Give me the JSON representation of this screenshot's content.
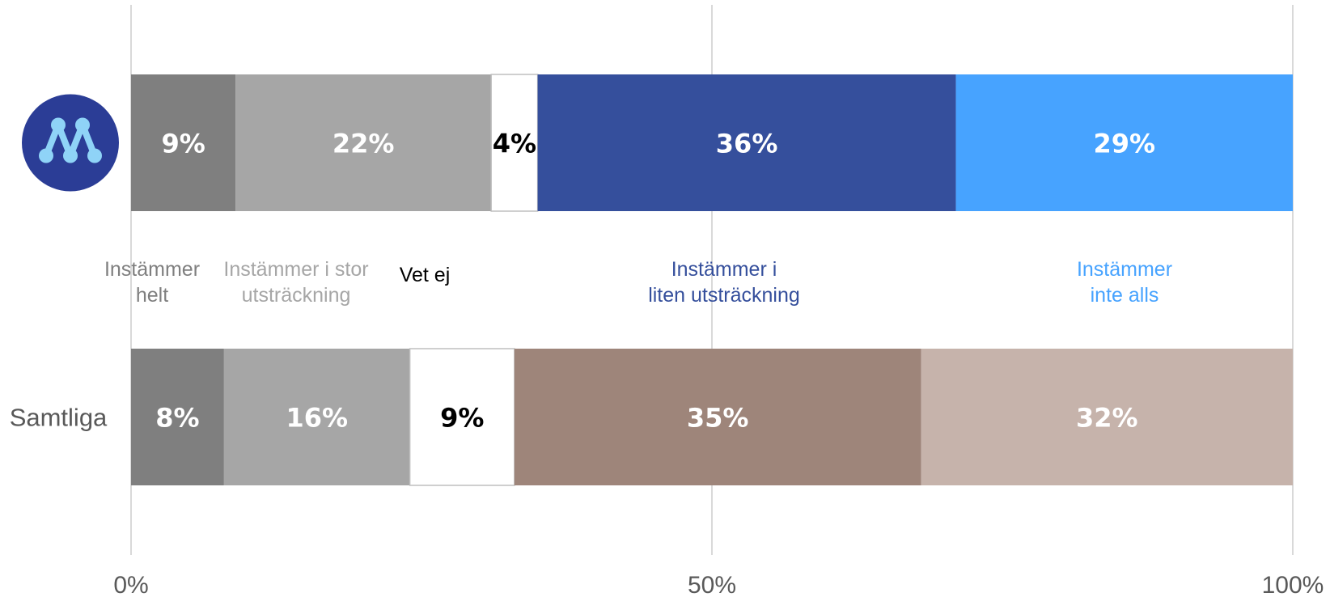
{
  "chart_data": {
    "type": "bar",
    "orientation": "horizontal",
    "stacked": true,
    "x_ticks": [
      "0%",
      "50%",
      "100%"
    ],
    "xlim": [
      0,
      100
    ],
    "grid": true,
    "categories": [
      {
        "label": "",
        "icon": "moderaterna-logo-icon",
        "values": [
          9,
          22,
          4,
          36,
          29
        ],
        "labels": [
          "9%",
          "22%",
          "4%",
          "36%",
          "29%"
        ],
        "colors": [
          "#7f7f7f",
          "#a6a6a6",
          "#ffffff",
          "#354f9c",
          "#47a3ff"
        ],
        "label_colors": [
          "#ffffff",
          "#ffffff",
          "#000000",
          "#ffffff",
          "#ffffff"
        ]
      },
      {
        "label": "Samtliga",
        "values": [
          8,
          16,
          9,
          35,
          32
        ],
        "labels": [
          "8%",
          "16%",
          "9%",
          "35%",
          "32%"
        ],
        "colors": [
          "#7f7f7f",
          "#a6a6a6",
          "#ffffff",
          "#9e857a",
          "#c6b3ab"
        ],
        "label_colors": [
          "#ffffff",
          "#ffffff",
          "#000000",
          "#ffffff",
          "#ffffff"
        ]
      }
    ],
    "legend": {
      "placement": "between-bars",
      "items": [
        {
          "lines": [
            "Instämmer",
            "helt"
          ],
          "color": "#7f7f7f"
        },
        {
          "lines": [
            "Instämmer i stor",
            "utsträckning"
          ],
          "color": "#a6a6a6"
        },
        {
          "lines": [
            "Vet ej"
          ],
          "color": "#000000"
        },
        {
          "lines": [
            "Instämmer i",
            "liten utsträckning"
          ],
          "color": "#354f9c"
        },
        {
          "lines": [
            "Instämmer",
            "inte alls"
          ],
          "color": "#47a3ff"
        }
      ]
    },
    "gridline_color": "#d9d9d9",
    "logo_colors": {
      "background": "#2b3d96",
      "mark": "#8fd3f7"
    }
  }
}
